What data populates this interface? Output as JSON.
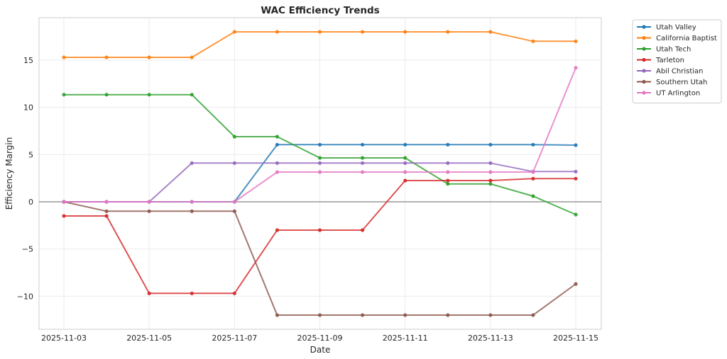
{
  "chart_data": {
    "type": "line",
    "title": "WAC Efficiency Trends",
    "xlabel": "Date",
    "ylabel": "Efficiency Margin",
    "x": [
      "2025-11-03",
      "2025-11-04",
      "2025-11-05",
      "2025-11-06",
      "2025-11-07",
      "2025-11-08",
      "2025-11-09",
      "2025-11-10",
      "2025-11-11",
      "2025-11-12",
      "2025-11-13",
      "2025-11-14",
      "2025-11-15"
    ],
    "xtick_labels": [
      "2025-11-03",
      "2025-11-05",
      "2025-11-07",
      "2025-11-09",
      "2025-11-11",
      "2025-11-13",
      "2025-11-15"
    ],
    "ytick_values": [
      -10,
      -5,
      0,
      5,
      10,
      15
    ],
    "ytick_labels": [
      "−10",
      "−5",
      "0",
      "5",
      "10",
      "15"
    ],
    "ylim": [
      -13.5,
      19.5
    ],
    "grid": true,
    "zero_line": true,
    "legend_position": "outside-top-right",
    "series": [
      {
        "name": "Utah Valley",
        "color": "#1f77b4",
        "values": [
          0,
          0,
          0,
          0,
          0,
          6.05,
          6.05,
          6.05,
          6.05,
          6.05,
          6.05,
          6.05,
          6.0
        ]
      },
      {
        "name": "California Baptist",
        "color": "#ff7f0e",
        "values": [
          15.3,
          15.3,
          15.3,
          15.3,
          18.0,
          18.0,
          18.0,
          18.0,
          18.0,
          18.0,
          18.0,
          17.0,
          17.0
        ]
      },
      {
        "name": "Utah Tech",
        "color": "#2ca02c",
        "values": [
          11.35,
          11.35,
          11.35,
          11.35,
          6.9,
          6.9,
          4.65,
          4.65,
          4.65,
          1.9,
          1.9,
          0.6,
          -1.35
        ]
      },
      {
        "name": "Tarleton",
        "color": "#d62728",
        "values": [
          -1.5,
          -1.5,
          -9.7,
          -9.7,
          -9.7,
          -3.0,
          -3.0,
          -3.0,
          2.25,
          2.25,
          2.25,
          2.45,
          2.45
        ]
      },
      {
        "name": "Abil Christian",
        "color": "#9467bd",
        "values": [
          0,
          0,
          0,
          4.1,
          4.1,
          4.1,
          4.1,
          4.1,
          4.1,
          4.1,
          4.1,
          3.2,
          3.2
        ]
      },
      {
        "name": "Southern Utah",
        "color": "#8c564b",
        "values": [
          0,
          -1.0,
          -1.0,
          -1.0,
          -1.0,
          -12.0,
          -12.0,
          -12.0,
          -12.0,
          -12.0,
          -12.0,
          -12.0,
          -8.7
        ]
      },
      {
        "name": "UT Arlington",
        "color": "#e377c2",
        "values": [
          0,
          0,
          0,
          0,
          0,
          3.15,
          3.15,
          3.15,
          3.15,
          3.15,
          3.15,
          3.15,
          14.2
        ]
      }
    ]
  }
}
